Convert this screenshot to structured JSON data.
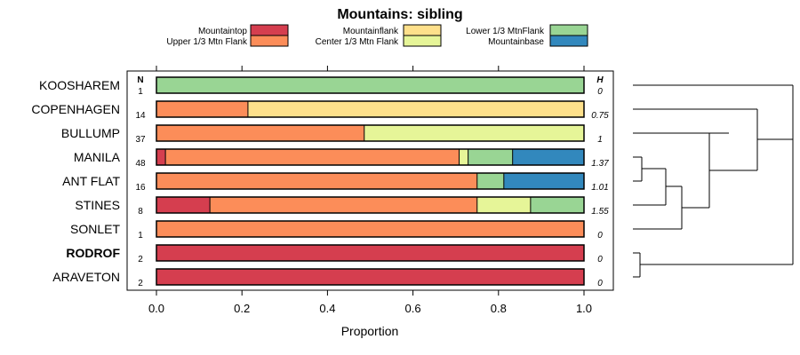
{
  "chart_data": {
    "type": "bar",
    "orientation": "horizontal",
    "stacked": true,
    "title": "Mountains: sibling",
    "xlabel": "Proportion",
    "xlim": [
      0,
      1
    ],
    "xticks": [
      "0.0",
      "0.2",
      "0.4",
      "0.6",
      "0.8",
      "1.0"
    ],
    "n_header": "N",
    "h_header": "H",
    "legend": [
      {
        "name": "Mountaintop",
        "color": "#d53e4f"
      },
      {
        "name": "Upper 1/3 Mtn Flank",
        "color": "#fc8d59"
      },
      {
        "name": "Mountainflank",
        "color": "#fee08b"
      },
      {
        "name": "Center 1/3 Mtn Flank",
        "color": "#e6f598"
      },
      {
        "name": "Lower 1/3 MtnFlank",
        "color": "#99d594"
      },
      {
        "name": "Mountainbase",
        "color": "#3288bd"
      }
    ],
    "series": [
      "Mountaintop",
      "Upper 1/3 Mtn Flank",
      "Mountainflank",
      "Center 1/3 Mtn Flank",
      "Lower 1/3 MtnFlank",
      "Mountainbase"
    ],
    "rows": [
      {
        "label": "KOOSHAREM",
        "bold": false,
        "n": "1",
        "h": "0",
        "values": [
          0,
          0,
          0,
          0,
          1.0,
          0
        ]
      },
      {
        "label": "COPENHAGEN",
        "bold": false,
        "n": "14",
        "h": "0.75",
        "values": [
          0,
          0.214,
          0.786,
          0,
          0,
          0
        ]
      },
      {
        "label": "BULLUMP",
        "bold": false,
        "n": "37",
        "h": "1",
        "values": [
          0,
          0.486,
          0,
          0.514,
          0,
          0
        ]
      },
      {
        "label": "MANILA",
        "bold": false,
        "n": "48",
        "h": "1.37",
        "values": [
          0.021,
          0.687,
          0,
          0.021,
          0.104,
          0.167
        ]
      },
      {
        "label": "ANT FLAT",
        "bold": false,
        "n": "16",
        "h": "1.01",
        "values": [
          0,
          0.75,
          0,
          0,
          0.0625,
          0.1875
        ]
      },
      {
        "label": "STINES",
        "bold": false,
        "n": "8",
        "h": "1.55",
        "values": [
          0.125,
          0.625,
          0,
          0.125,
          0.125,
          0
        ]
      },
      {
        "label": "SONLET",
        "bold": false,
        "n": "1",
        "h": "0",
        "values": [
          0,
          1.0,
          0,
          0,
          0,
          0
        ]
      },
      {
        "label": "RODROF",
        "bold": true,
        "n": "2",
        "h": "0",
        "values": [
          1.0,
          0,
          0,
          0,
          0,
          0
        ]
      },
      {
        "label": "ARAVETON",
        "bold": false,
        "n": "2",
        "h": "0",
        "values": [
          1.0,
          0,
          0,
          0,
          0,
          0
        ]
      }
    ]
  }
}
